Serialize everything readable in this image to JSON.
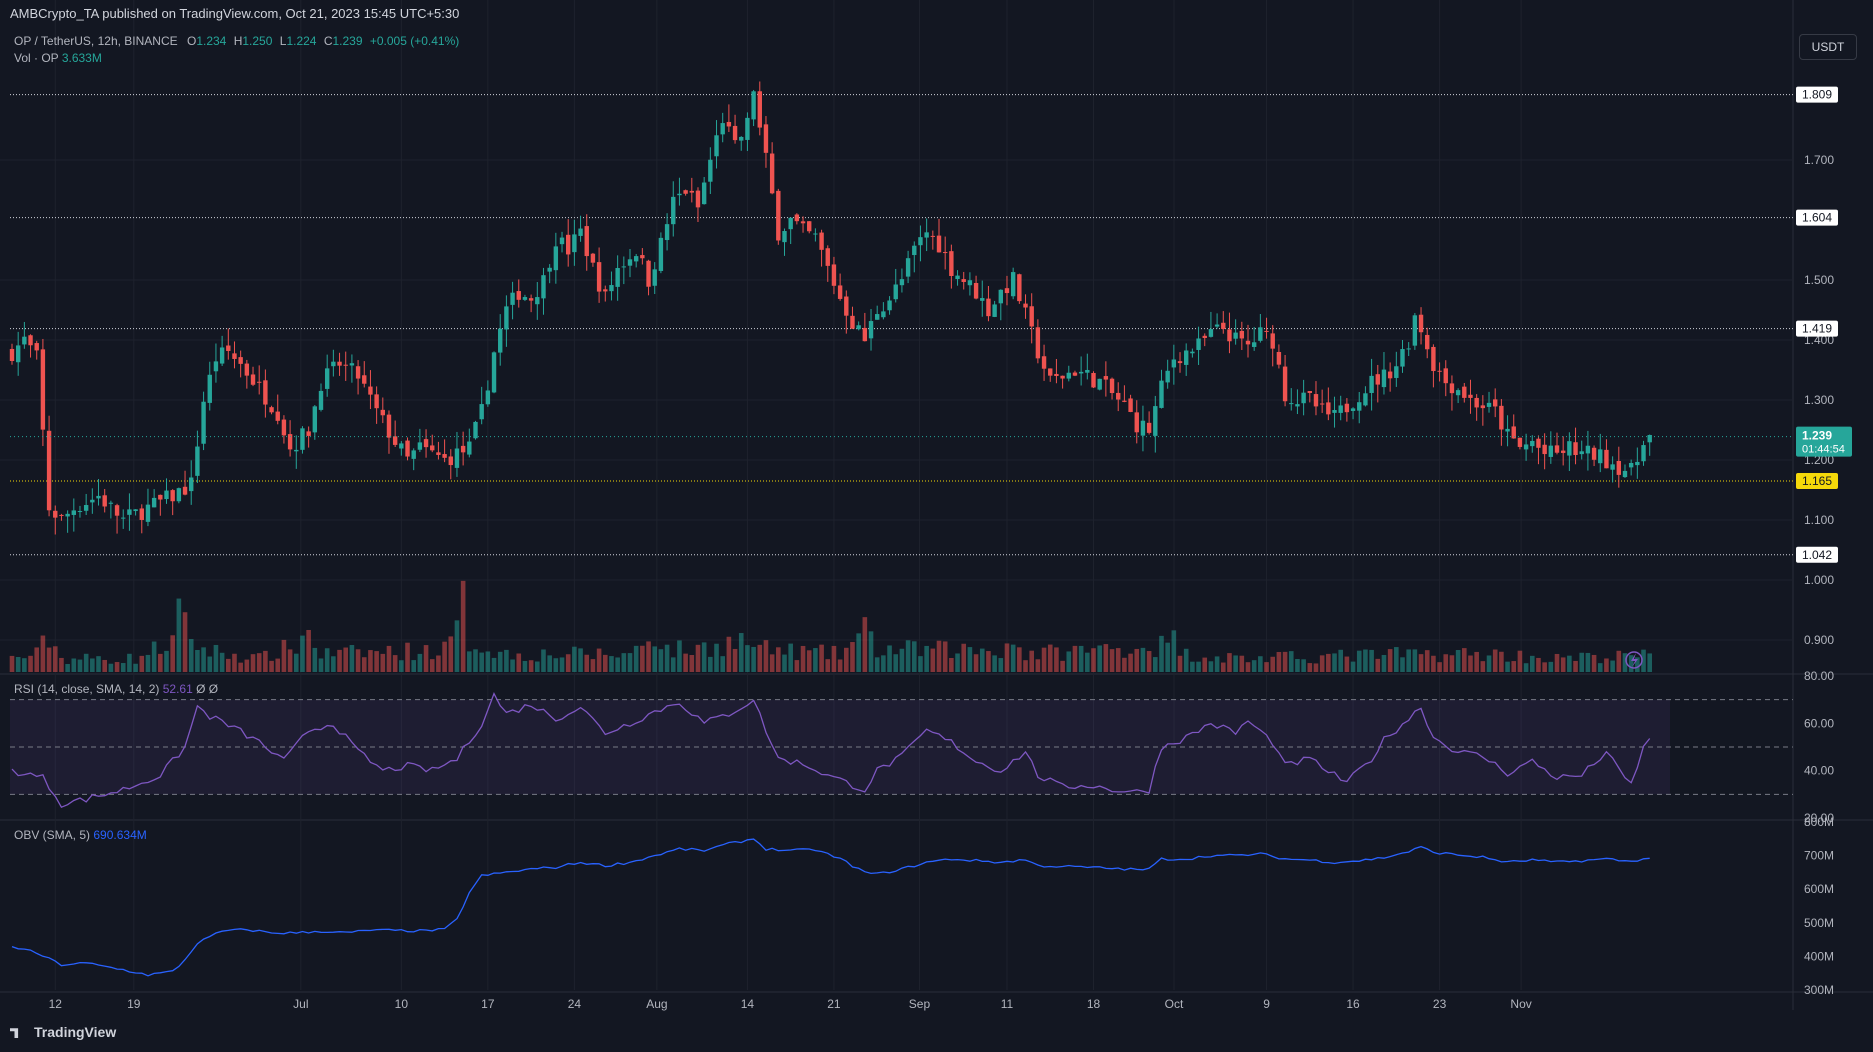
{
  "header": {
    "published": "AMBCrypto_TA published on TradingView.com, Oct 21, 2023 15:45 UTC+5:30",
    "symbol": "OP / TetherUS, 12h, BINANCE",
    "ohlc": {
      "O": "1.234",
      "H": "1.250",
      "L": "1.224",
      "C": "1.239",
      "change": "+0.005 (+0.41%)"
    },
    "vol_label": "Vol · OP",
    "vol_value": "3.633M",
    "currency": "USDT"
  },
  "rsi": {
    "label": "RSI (14, close, SMA, 14, 2)",
    "value": "52.61",
    "extra": "Ø  Ø",
    "ticks": [
      "80.00",
      "60.00",
      "40.00",
      "20.00"
    ]
  },
  "obv": {
    "label": "OBV (SMA, 5)",
    "value": "690.634M",
    "ticks": [
      "800M",
      "700M",
      "600M",
      "500M",
      "400M",
      "300M"
    ]
  },
  "price_axis": {
    "ticks": [
      "1.700",
      "1.500",
      "1.400",
      "1.300",
      "1.200",
      "1.100",
      "1.000",
      "0.900"
    ]
  },
  "levels": [
    "1.809",
    "1.604",
    "1.419",
    "1.165",
    "1.042"
  ],
  "current_price": {
    "value": "1.239",
    "countdown": "01:44:54"
  },
  "time_axis": [
    "12",
    "19",
    "Jul",
    "10",
    "17",
    "24",
    "Aug",
    "14",
    "21",
    "Sep",
    "11",
    "18",
    "Oct",
    "9",
    "16",
    "23",
    "Nov"
  ],
  "footer": {
    "brand": "TradingView"
  },
  "colors": {
    "bg": "#131722",
    "up": "#26a69a",
    "down": "#ef5350",
    "rsi": "#7e57c2",
    "obv": "#2962ff",
    "level": "#d1d4dc",
    "support": "#f5d90a"
  },
  "chart_data": {
    "type": "candlestick",
    "interval": "12h",
    "x_range": [
      "Jun 08 2023",
      "Oct 21 2023"
    ],
    "price_ylim": [
      0.85,
      1.85
    ],
    "price_path": [
      [
        0,
        1.38
      ],
      [
        2,
        1.4
      ],
      [
        4,
        1.37
      ],
      [
        6,
        1.12
      ],
      [
        8,
        1.1
      ],
      [
        10,
        1.12
      ],
      [
        12,
        1.13
      ],
      [
        14,
        1.14
      ],
      [
        18,
        1.1
      ],
      [
        22,
        1.12
      ],
      [
        26,
        1.14
      ],
      [
        29,
        1.16
      ],
      [
        31,
        1.3
      ],
      [
        33,
        1.37
      ],
      [
        35,
        1.38
      ],
      [
        37,
        1.36
      ],
      [
        40,
        1.32
      ],
      [
        43,
        1.28
      ],
      [
        45,
        1.22
      ],
      [
        48,
        1.25
      ],
      [
        50,
        1.33
      ],
      [
        53,
        1.36
      ],
      [
        56,
        1.34
      ],
      [
        59,
        1.28
      ],
      [
        62,
        1.23
      ],
      [
        64,
        1.2
      ],
      [
        66,
        1.22
      ],
      [
        70,
        1.2
      ],
      [
        74,
        1.22
      ],
      [
        76,
        1.28
      ],
      [
        78,
        1.38
      ],
      [
        80,
        1.45
      ],
      [
        82,
        1.48
      ],
      [
        84,
        1.47
      ],
      [
        86,
        1.5
      ],
      [
        88,
        1.57
      ],
      [
        90,
        1.55
      ],
      [
        92,
        1.58
      ],
      [
        94,
        1.52
      ],
      [
        96,
        1.47
      ],
      [
        98,
        1.52
      ],
      [
        101,
        1.55
      ],
      [
        103,
        1.5
      ],
      [
        105,
        1.56
      ],
      [
        107,
        1.63
      ],
      [
        109,
        1.65
      ],
      [
        111,
        1.62
      ],
      [
        113,
        1.7
      ],
      [
        115,
        1.77
      ],
      [
        117,
        1.72
      ],
      [
        119,
        1.76
      ],
      [
        120,
        1.82
      ],
      [
        121,
        1.75
      ],
      [
        122,
        1.7
      ],
      [
        124,
        1.58
      ],
      [
        126,
        1.6
      ],
      [
        128,
        1.58
      ],
      [
        130,
        1.57
      ],
      [
        132,
        1.52
      ],
      [
        134,
        1.47
      ],
      [
        136,
        1.43
      ],
      [
        138,
        1.4
      ],
      [
        140,
        1.45
      ],
      [
        142,
        1.47
      ],
      [
        144,
        1.5
      ],
      [
        146,
        1.55
      ],
      [
        148,
        1.58
      ],
      [
        150,
        1.56
      ],
      [
        152,
        1.52
      ],
      [
        154,
        1.5
      ],
      [
        156,
        1.48
      ],
      [
        158,
        1.45
      ],
      [
        160,
        1.48
      ],
      [
        162,
        1.5
      ],
      [
        164,
        1.44
      ],
      [
        166,
        1.38
      ],
      [
        168,
        1.33
      ],
      [
        170,
        1.34
      ],
      [
        172,
        1.35
      ],
      [
        174,
        1.34
      ],
      [
        176,
        1.33
      ],
      [
        178,
        1.31
      ],
      [
        180,
        1.29
      ],
      [
        182,
        1.26
      ],
      [
        184,
        1.25
      ],
      [
        186,
        1.32
      ],
      [
        188,
        1.37
      ],
      [
        190,
        1.38
      ],
      [
        192,
        1.39
      ],
      [
        194,
        1.41
      ],
      [
        196,
        1.42
      ],
      [
        198,
        1.4
      ],
      [
        200,
        1.39
      ],
      [
        202,
        1.41
      ],
      [
        204,
        1.4
      ],
      [
        206,
        1.31
      ],
      [
        208,
        1.3
      ],
      [
        210,
        1.3
      ],
      [
        212,
        1.28
      ],
      [
        214,
        1.27
      ],
      [
        216,
        1.29
      ],
      [
        218,
        1.31
      ],
      [
        220,
        1.33
      ],
      [
        222,
        1.34
      ],
      [
        224,
        1.36
      ],
      [
        226,
        1.4
      ],
      [
        227,
        1.44
      ],
      [
        228,
        1.42
      ],
      [
        230,
        1.36
      ],
      [
        232,
        1.33
      ],
      [
        234,
        1.32
      ],
      [
        236,
        1.3
      ],
      [
        238,
        1.29
      ],
      [
        240,
        1.28
      ],
      [
        242,
        1.24
      ],
      [
        244,
        1.22
      ],
      [
        246,
        1.23
      ],
      [
        248,
        1.21
      ],
      [
        250,
        1.21
      ],
      [
        252,
        1.22
      ],
      [
        254,
        1.21
      ],
      [
        256,
        1.21
      ],
      [
        258,
        1.2
      ],
      [
        260,
        1.19
      ],
      [
        262,
        1.18
      ],
      [
        263,
        1.2
      ],
      [
        264,
        1.239
      ],
      [
        265,
        1.239
      ]
    ],
    "volume_ylim": [
      0,
      36
    ],
    "volume_note": "volume bars in millions OP, approximate",
    "volume_path": [
      [
        0,
        3
      ],
      [
        4,
        4
      ],
      [
        6,
        8
      ],
      [
        8,
        3
      ],
      [
        20,
        3
      ],
      [
        26,
        7
      ],
      [
        27,
        12
      ],
      [
        29,
        8
      ],
      [
        31,
        5
      ],
      [
        40,
        3
      ],
      [
        46,
        6
      ],
      [
        48,
        9
      ],
      [
        50,
        4
      ],
      [
        70,
        5
      ],
      [
        72,
        9
      ],
      [
        73,
        15
      ],
      [
        74,
        7
      ],
      [
        80,
        4
      ],
      [
        100,
        4
      ],
      [
        104,
        9
      ],
      [
        106,
        5
      ],
      [
        110,
        5
      ],
      [
        118,
        7
      ],
      [
        122,
        5
      ],
      [
        134,
        4
      ],
      [
        138,
        9
      ],
      [
        140,
        5
      ],
      [
        160,
        5
      ],
      [
        162,
        7
      ],
      [
        164,
        4
      ],
      [
        186,
        6
      ],
      [
        188,
        7
      ],
      [
        190,
        4
      ],
      [
        200,
        3
      ],
      [
        226,
        4
      ],
      [
        230,
        4
      ],
      [
        240,
        4
      ],
      [
        250,
        3
      ],
      [
        264,
        3.633
      ],
      [
        265,
        3.633
      ]
    ],
    "rsi_ylim": [
      20,
      80
    ],
    "rsi_overbought": 70,
    "rsi_mid": 50,
    "rsi_oversold": 30,
    "rsi_path": [
      [
        0,
        40
      ],
      [
        5,
        37
      ],
      [
        8,
        26
      ],
      [
        12,
        28
      ],
      [
        18,
        32
      ],
      [
        24,
        38
      ],
      [
        28,
        50
      ],
      [
        30,
        67
      ],
      [
        32,
        63
      ],
      [
        36,
        58
      ],
      [
        40,
        52
      ],
      [
        44,
        44
      ],
      [
        48,
        57
      ],
      [
        52,
        60
      ],
      [
        56,
        48
      ],
      [
        60,
        40
      ],
      [
        64,
        42
      ],
      [
        68,
        40
      ],
      [
        72,
        45
      ],
      [
        76,
        60
      ],
      [
        78,
        72
      ],
      [
        80,
        64
      ],
      [
        84,
        68
      ],
      [
        88,
        62
      ],
      [
        92,
        67
      ],
      [
        96,
        56
      ],
      [
        100,
        60
      ],
      [
        104,
        65
      ],
      [
        108,
        69
      ],
      [
        112,
        60
      ],
      [
        116,
        64
      ],
      [
        120,
        70
      ],
      [
        122,
        57
      ],
      [
        124,
        45
      ],
      [
        128,
        43
      ],
      [
        132,
        38
      ],
      [
        136,
        34
      ],
      [
        138,
        32
      ],
      [
        140,
        40
      ],
      [
        144,
        46
      ],
      [
        148,
        57
      ],
      [
        152,
        52
      ],
      [
        156,
        44
      ],
      [
        160,
        40
      ],
      [
        164,
        48
      ],
      [
        166,
        38
      ],
      [
        170,
        33
      ],
      [
        174,
        34
      ],
      [
        178,
        32
      ],
      [
        182,
        31
      ],
      [
        184,
        32
      ],
      [
        186,
        50
      ],
      [
        190,
        54
      ],
      [
        194,
        60
      ],
      [
        198,
        56
      ],
      [
        200,
        61
      ],
      [
        204,
        52
      ],
      [
        206,
        42
      ],
      [
        210,
        45
      ],
      [
        214,
        38
      ],
      [
        216,
        35
      ],
      [
        220,
        45
      ],
      [
        222,
        53
      ],
      [
        226,
        62
      ],
      [
        228,
        67
      ],
      [
        230,
        54
      ],
      [
        234,
        48
      ],
      [
        238,
        46
      ],
      [
        242,
        39
      ],
      [
        246,
        44
      ],
      [
        250,
        37
      ],
      [
        254,
        38
      ],
      [
        258,
        48
      ],
      [
        260,
        40
      ],
      [
        262,
        34
      ],
      [
        264,
        50
      ],
      [
        265,
        52.61
      ]
    ],
    "obv_ylim": [
      300,
      800
    ],
    "obv_path": [
      [
        0,
        430
      ],
      [
        4,
        410
      ],
      [
        8,
        375
      ],
      [
        12,
        380
      ],
      [
        18,
        360
      ],
      [
        22,
        345
      ],
      [
        26,
        355
      ],
      [
        28,
        390
      ],
      [
        30,
        440
      ],
      [
        34,
        475
      ],
      [
        38,
        480
      ],
      [
        42,
        470
      ],
      [
        46,
        470
      ],
      [
        50,
        475
      ],
      [
        54,
        470
      ],
      [
        58,
        478
      ],
      [
        62,
        477
      ],
      [
        66,
        476
      ],
      [
        70,
        480
      ],
      [
        72,
        510
      ],
      [
        74,
        590
      ],
      [
        76,
        640
      ],
      [
        80,
        650
      ],
      [
        84,
        660
      ],
      [
        88,
        665
      ],
      [
        92,
        680
      ],
      [
        96,
        670
      ],
      [
        100,
        680
      ],
      [
        104,
        700
      ],
      [
        108,
        720
      ],
      [
        112,
        715
      ],
      [
        116,
        735
      ],
      [
        120,
        750
      ],
      [
        122,
        720
      ],
      [
        126,
        715
      ],
      [
        130,
        718
      ],
      [
        134,
        690
      ],
      [
        138,
        650
      ],
      [
        140,
        645
      ],
      [
        144,
        660
      ],
      [
        148,
        680
      ],
      [
        152,
        690
      ],
      [
        156,
        685
      ],
      [
        160,
        680
      ],
      [
        164,
        688
      ],
      [
        166,
        670
      ],
      [
        170,
        668
      ],
      [
        174,
        665
      ],
      [
        178,
        662
      ],
      [
        182,
        658
      ],
      [
        184,
        660
      ],
      [
        186,
        690
      ],
      [
        190,
        690
      ],
      [
        194,
        700
      ],
      [
        198,
        700
      ],
      [
        202,
        705
      ],
      [
        206,
        690
      ],
      [
        210,
        687
      ],
      [
        214,
        680
      ],
      [
        218,
        685
      ],
      [
        222,
        694
      ],
      [
        226,
        712
      ],
      [
        228,
        725
      ],
      [
        230,
        710
      ],
      [
        234,
        702
      ],
      [
        238,
        695
      ],
      [
        242,
        680
      ],
      [
        246,
        687
      ],
      [
        250,
        680
      ],
      [
        254,
        685
      ],
      [
        258,
        690
      ],
      [
        262,
        682
      ],
      [
        264,
        692
      ],
      [
        265,
        690.634
      ]
    ]
  }
}
